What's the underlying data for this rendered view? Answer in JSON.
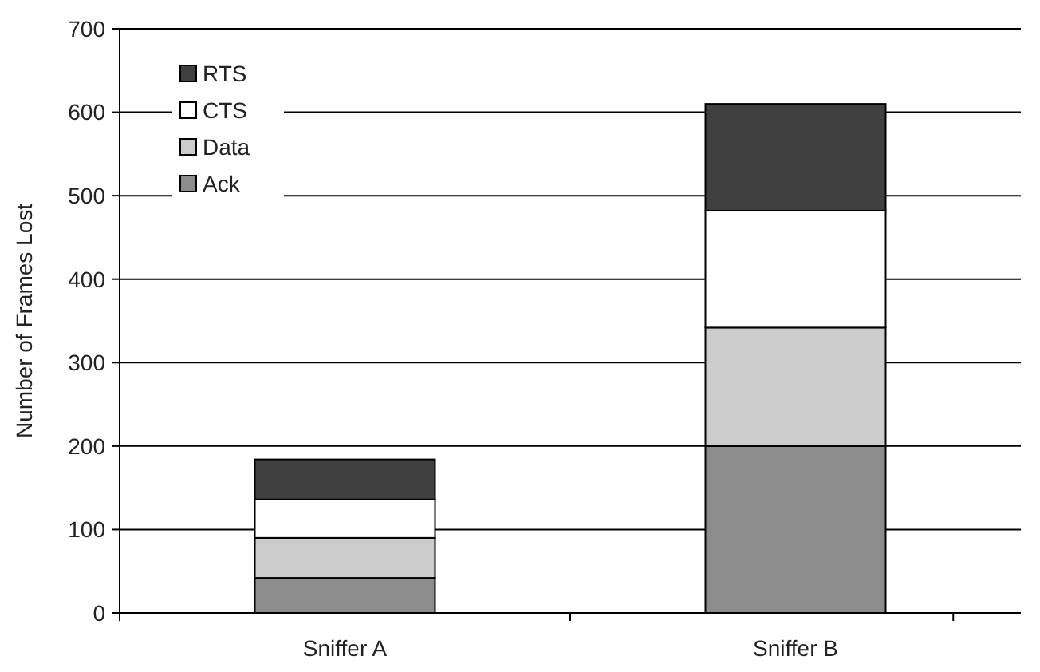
{
  "chart_data": {
    "type": "bar",
    "stacked": true,
    "ylabel": "Number of Frames Lost",
    "categories": [
      "Sniffer A",
      "Sniffer B"
    ],
    "series": [
      {
        "name": "Ack",
        "color": "#8c8c8c",
        "values": [
          42,
          200
        ]
      },
      {
        "name": "Data",
        "color": "#cccccc",
        "values": [
          48,
          142
        ]
      },
      {
        "name": "CTS",
        "color": "#ffffff",
        "values": [
          46,
          140
        ]
      },
      {
        "name": "RTS",
        "color": "#404040",
        "values": [
          48,
          128
        ]
      }
    ],
    "ylim": [
      0,
      700
    ],
    "yticks": [
      0,
      100,
      200,
      300,
      400,
      500,
      600,
      700
    ],
    "grid": "y",
    "legend": "top left"
  }
}
